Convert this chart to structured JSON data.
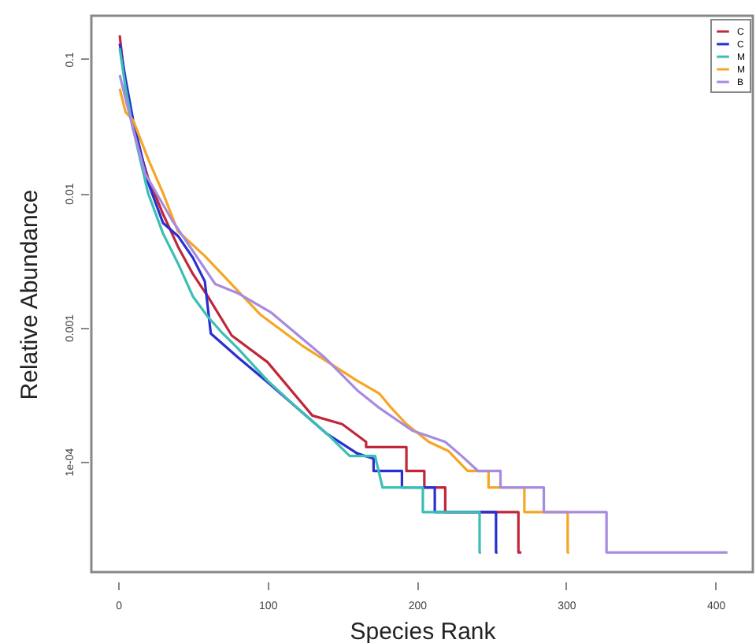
{
  "chart_data": {
    "type": "line",
    "xlabel": "Species Rank",
    "ylabel": "Relative Abundance",
    "log": "y",
    "xlim": [
      -18,
      425
    ],
    "xticks": [
      0,
      100,
      200,
      300,
      400
    ],
    "ylim": [
      1.5e-05,
      0.21
    ],
    "yticks": [
      {
        "value": 0.1,
        "label": "0.1"
      },
      {
        "value": 0.01,
        "label": "0.01"
      },
      {
        "value": 0.001,
        "label": "0.001"
      },
      {
        "value": 0.0001,
        "label": "1e-04"
      }
    ],
    "legend": "top right",
    "marker": "none",
    "line_style": "solid",
    "grid": false,
    "series": [
      {
        "name": "C",
        "color": "#c0273a",
        "x": [
          1,
          5,
          10,
          20,
          30,
          40,
          50,
          60,
          76,
          100,
          130,
          150,
          166,
          166,
          193,
          193,
          205,
          205,
          219,
          219,
          268,
          268,
          270
        ],
        "values": [
          0.15,
          0.06,
          0.03,
          0.013,
          0.007,
          0.004,
          0.0025,
          0.0017,
          0.00087,
          0.00055,
          0.00022,
          0.00019,
          0.00014,
          0.000128,
          0.000128,
          8.5e-05,
          8.5e-05,
          6.4e-05,
          6.4e-05,
          4.2e-05,
          4.2e-05,
          2.1e-05,
          2.1e-05
        ]
      },
      {
        "name": "C",
        "color": "#2a2fd0",
        "x": [
          1,
          5,
          10,
          20,
          30,
          40,
          50,
          58,
          62,
          80,
          100,
          120,
          140,
          160,
          171,
          171,
          190,
          190,
          212,
          212,
          253,
          253,
          254
        ],
        "values": [
          0.13,
          0.07,
          0.035,
          0.012,
          0.006,
          0.0048,
          0.0033,
          0.0022,
          0.0009,
          0.0006,
          0.00039,
          0.00025,
          0.00016,
          0.000115,
          0.000105,
          8.5e-05,
          8.5e-05,
          6.4e-05,
          6.4e-05,
          4.2e-05,
          4.2e-05,
          2.1e-05,
          2.1e-05
        ]
      },
      {
        "name": "M",
        "color": "#3bbfb4",
        "x": [
          1,
          5,
          10,
          20,
          30,
          40,
          50,
          60,
          70,
          80,
          100,
          120,
          140,
          155,
          172,
          177,
          204,
          204,
          242,
          242,
          243
        ],
        "values": [
          0.12,
          0.06,
          0.03,
          0.01,
          0.005,
          0.003,
          0.0017,
          0.0012,
          0.0009,
          0.0007,
          0.0004,
          0.00025,
          0.00016,
          0.00011,
          0.00011,
          6.4e-05,
          6.4e-05,
          4.2e-05,
          4.2e-05,
          2.1e-05,
          2.1e-05
        ]
      },
      {
        "name": "M",
        "color": "#f5a623",
        "x": [
          1,
          5,
          10,
          20,
          30,
          40,
          58,
          95,
          124,
          160,
          175,
          183,
          193,
          208,
          221,
          234,
          248,
          248,
          272,
          272,
          301,
          301,
          302
        ],
        "values": [
          0.06,
          0.04,
          0.035,
          0.018,
          0.01,
          0.0052,
          0.0034,
          0.00125,
          0.00072,
          0.0004,
          0.00032,
          0.00025,
          0.00019,
          0.00014,
          0.00012,
          8.5e-05,
          8.5e-05,
          6.4e-05,
          6.4e-05,
          4.2e-05,
          4.2e-05,
          2.1e-05,
          2.1e-05
        ]
      },
      {
        "name": "B",
        "color": "#a78be0",
        "x": [
          1,
          5,
          10,
          18,
          36,
          65,
          80,
          102,
          138,
          160,
          175,
          197,
          219,
          230,
          241,
          256,
          256,
          285,
          285,
          327,
          327,
          408
        ],
        "values": [
          0.076,
          0.05,
          0.03,
          0.014,
          0.0063,
          0.0021,
          0.0018,
          0.0013,
          0.0006,
          0.00034,
          0.00025,
          0.00017,
          0.00014,
          0.00011,
          8.5e-05,
          8.5e-05,
          6.4e-05,
          6.4e-05,
          4.2e-05,
          4.2e-05,
          2.1e-05,
          2.1e-05
        ]
      }
    ]
  }
}
